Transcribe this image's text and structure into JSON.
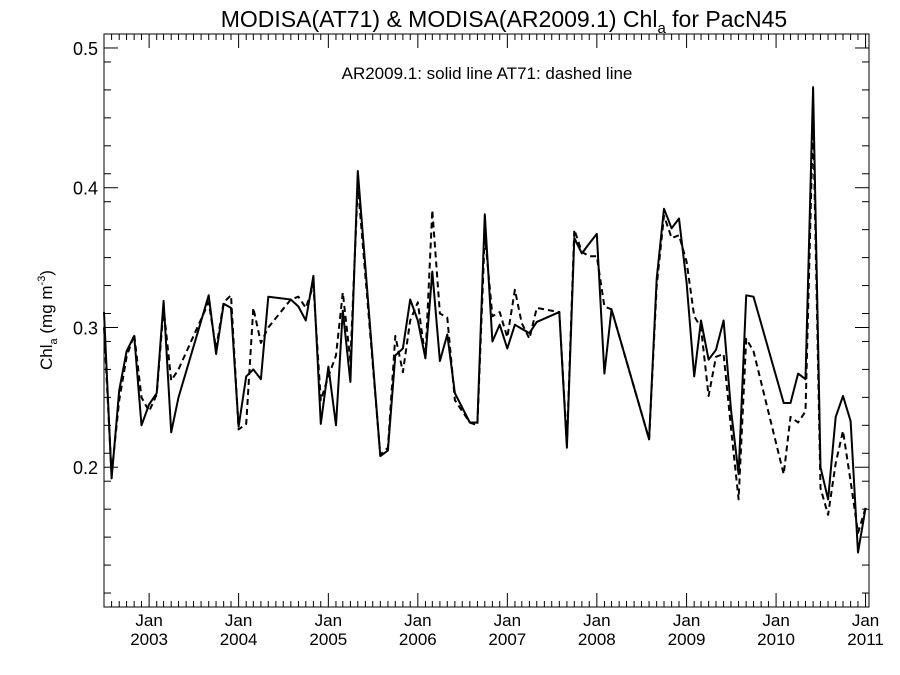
{
  "chart_data": {
    "type": "line",
    "title_main": "MODISA(AT71) & MODISA(AR2009.1)  Chl",
    "title_sub": "a",
    "title_tail": " for PacN45",
    "annotation": "AR2009.1: solid line   AT71: dashed line",
    "ylabel_main": "Chl",
    "ylabel_sub": "a",
    "ylabel_unit": " (mg m",
    "ylabel_sup": "-3",
    "ylabel_close": ")",
    "ylim": [
      0.1,
      0.51
    ],
    "xlim": [
      "2002-07-01",
      "2011-01-15"
    ],
    "yticks": [
      0.2,
      0.3,
      0.4,
      0.5
    ],
    "ytick_labels": [
      "0.2",
      "0.3",
      "0.4",
      "0.5"
    ],
    "xticks": [
      {
        "date": "2003-01-01",
        "month": "Jan",
        "year": "2003"
      },
      {
        "date": "2004-01-01",
        "month": "Jan",
        "year": "2004"
      },
      {
        "date": "2005-01-01",
        "month": "Jan",
        "year": "2005"
      },
      {
        "date": "2006-01-01",
        "month": "Jan",
        "year": "2006"
      },
      {
        "date": "2007-01-01",
        "month": "Jan",
        "year": "2007"
      },
      {
        "date": "2008-01-01",
        "month": "Jan",
        "year": "2008"
      },
      {
        "date": "2009-01-01",
        "month": "Jan",
        "year": "2009"
      },
      {
        "date": "2010-01-01",
        "month": "Jan",
        "year": "2010"
      },
      {
        "date": "2011-01-01",
        "month": "Jan",
        "year": "2011"
      }
    ],
    "x": [
      "2002-07-01",
      "2002-08-01",
      "2002-09-01",
      "2002-10-01",
      "2002-11-01",
      "2002-12-01",
      "2003-01-01",
      "2003-02-01",
      "2003-03-01",
      "2003-04-01",
      "2003-05-01",
      "2003-09-01",
      "2003-10-01",
      "2003-11-01",
      "2003-12-01",
      "2004-01-01",
      "2004-02-01",
      "2004-03-01",
      "2004-04-01",
      "2004-05-01",
      "2004-08-01",
      "2004-09-01",
      "2004-10-01",
      "2004-11-01",
      "2004-12-01",
      "2005-01-01",
      "2005-02-01",
      "2005-03-01",
      "2005-04-01",
      "2005-05-01",
      "2005-08-01",
      "2005-09-01",
      "2005-10-01",
      "2005-11-01",
      "2005-12-01",
      "2006-01-01",
      "2006-02-01",
      "2006-03-01",
      "2006-04-01",
      "2006-05-01",
      "2006-06-01",
      "2006-08-01",
      "2006-09-01",
      "2006-10-01",
      "2006-11-01",
      "2006-12-01",
      "2007-01-01",
      "2007-02-01",
      "2007-03-01",
      "2007-04-01",
      "2007-05-01",
      "2007-08-01",
      "2007-09-01",
      "2007-10-01",
      "2007-11-01",
      "2007-12-01",
      "2008-01-01",
      "2008-02-01",
      "2008-03-01",
      "2008-08-01",
      "2008-09-01",
      "2008-10-01",
      "2008-11-01",
      "2008-12-01",
      "2009-01-01",
      "2009-02-01",
      "2009-03-01",
      "2009-04-01",
      "2009-05-01",
      "2009-06-01",
      "2009-07-01",
      "2009-08-01",
      "2009-09-01",
      "2009-10-01",
      "2010-02-01",
      "2010-03-01",
      "2010-04-01",
      "2010-05-01",
      "2010-06-01",
      "2010-07-01",
      "2010-08-01",
      "2010-09-01",
      "2010-10-01",
      "2010-11-01",
      "2010-12-01",
      "2011-01-01"
    ],
    "series": [
      {
        "name": "AR2009.1",
        "style": "solid",
        "color": "#000000",
        "values": [
          0.311,
          0.192,
          0.255,
          0.283,
          0.294,
          0.23,
          0.245,
          0.253,
          0.319,
          0.225,
          0.25,
          0.323,
          0.281,
          0.317,
          0.314,
          0.229,
          0.265,
          0.27,
          0.263,
          0.322,
          0.32,
          0.315,
          0.305,
          0.337,
          0.231,
          0.272,
          0.23,
          0.312,
          0.261,
          0.412,
          0.208,
          0.212,
          0.28,
          0.285,
          0.32,
          0.305,
          0.278,
          0.34,
          0.276,
          0.295,
          0.253,
          0.232,
          0.232,
          0.381,
          0.29,
          0.302,
          0.285,
          0.302,
          0.299,
          0.296,
          0.304,
          0.311,
          0.214,
          0.364,
          0.353,
          0.36,
          0.367,
          0.267,
          0.313,
          0.22,
          0.335,
          0.385,
          0.371,
          0.378,
          0.332,
          0.265,
          0.305,
          0.277,
          0.284,
          0.305,
          0.241,
          0.195,
          0.323,
          0.322,
          0.246,
          0.246,
          0.267,
          0.263,
          0.472,
          0.2,
          0.177,
          0.236,
          0.251,
          0.233,
          0.139,
          0.171
        ]
      },
      {
        "name": "AT71",
        "style": "dashed",
        "color": "#000000",
        "values": [
          0.3,
          0.195,
          0.248,
          0.279,
          0.295,
          0.25,
          0.24,
          0.252,
          0.314,
          0.262,
          0.27,
          0.318,
          0.285,
          0.318,
          0.323,
          0.227,
          0.231,
          0.314,
          0.289,
          0.3,
          0.32,
          0.322,
          0.314,
          0.33,
          0.248,
          0.265,
          0.28,
          0.325,
          0.276,
          0.402,
          0.209,
          0.214,
          0.294,
          0.268,
          0.305,
          0.318,
          0.278,
          0.384,
          0.31,
          0.307,
          0.248,
          0.232,
          0.23,
          0.367,
          0.308,
          0.311,
          0.293,
          0.327,
          0.303,
          0.292,
          0.314,
          0.311,
          0.217,
          0.37,
          0.354,
          0.351,
          0.351,
          0.315,
          0.313,
          0.22,
          0.33,
          0.38,
          0.364,
          0.366,
          0.347,
          0.308,
          0.3,
          0.251,
          0.279,
          0.281,
          0.228,
          0.177,
          0.292,
          0.283,
          0.195,
          0.236,
          0.232,
          0.24,
          0.451,
          0.185,
          0.166,
          0.203,
          0.226,
          0.19,
          0.153,
          0.171
        ]
      }
    ]
  }
}
